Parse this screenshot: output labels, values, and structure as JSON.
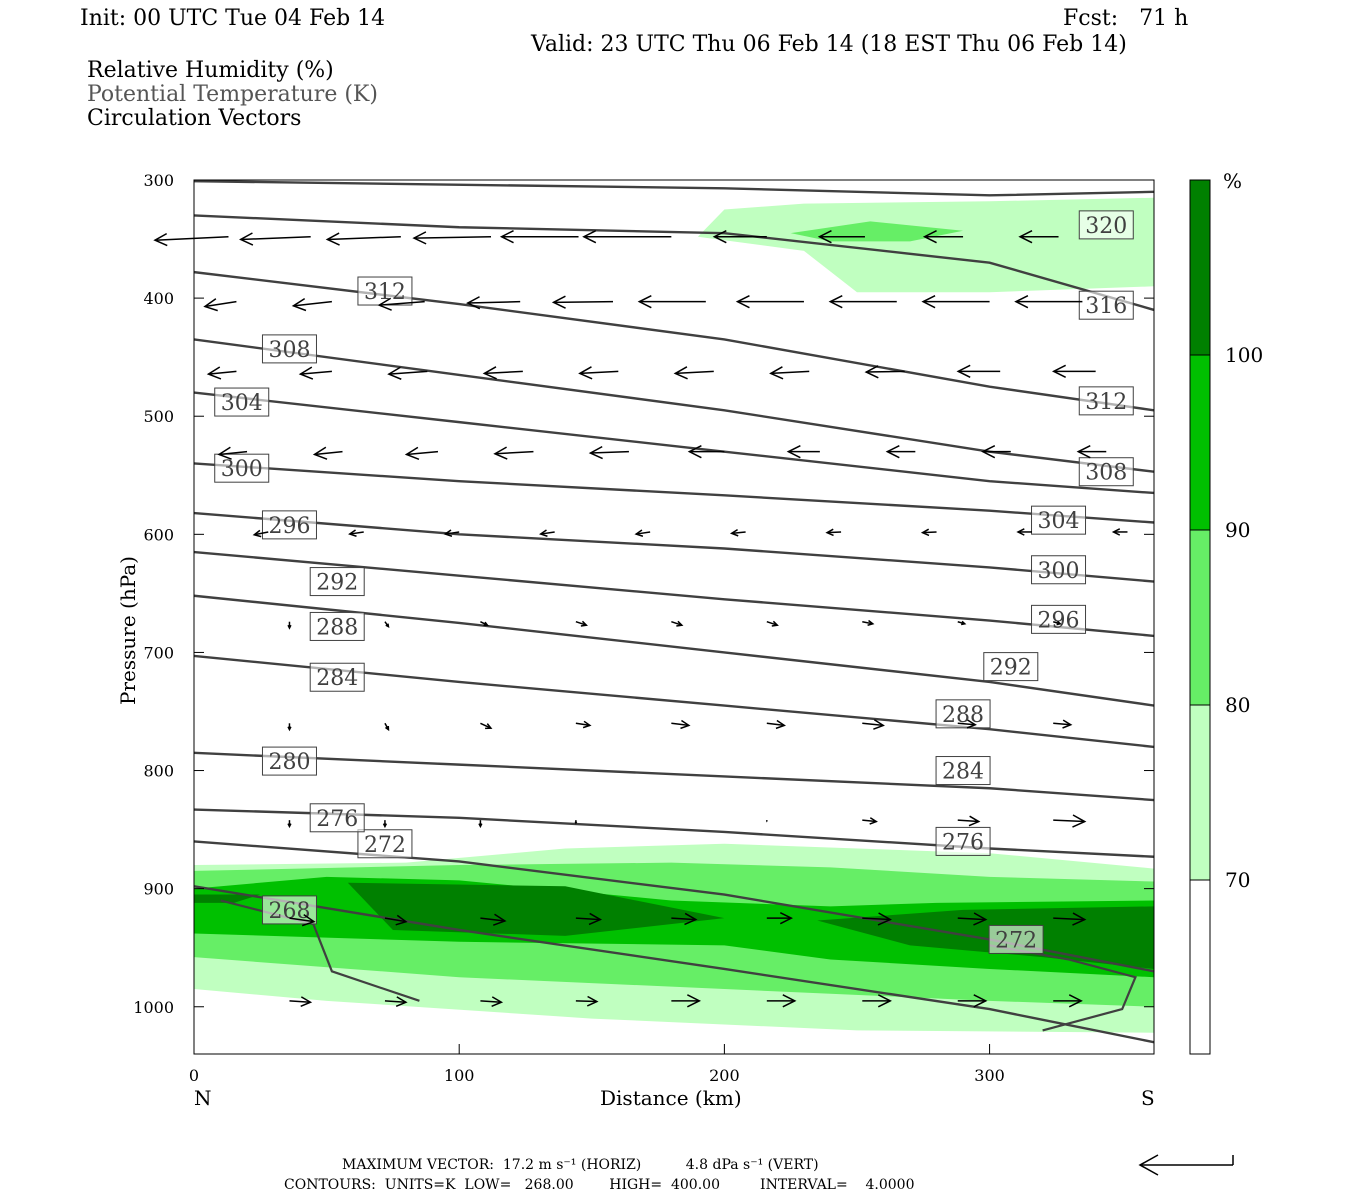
{
  "header": {
    "init": "Init: 00 UTC Tue 04 Feb 14",
    "fcst": "Fcst:   71 h",
    "valid": "Valid: 23 UTC Thu 06 Feb 14 (18 EST Thu 06 Feb 14)",
    "field1": "Relative Humidity (%)",
    "field2": "Potential Temperature (K)",
    "field3": "Circulation Vectors"
  },
  "footer": {
    "max_vector": "MAXIMUM VECTOR:  17.2 m s⁻¹ (HORIZ)          4.8 dPa s⁻¹ (VERT)",
    "contours": "CONTOURS:  UNITS=K  LOW=   268.00        HIGH=  400.00         INTERVAL=    4.0000"
  },
  "colors": {
    "rh70": "#c0ffc0",
    "rh80": "#66ee66",
    "rh90": "#00c000",
    "rh100": "#008000",
    "theta_line": "#404040"
  },
  "chart_data": {
    "type": "cross-section",
    "xlabel": "Distance (km)",
    "ylabel": "Pressure (hPa)",
    "xlim": [
      0,
      362
    ],
    "ylim": [
      1040,
      300
    ],
    "x_ticks": [
      0,
      100,
      200,
      300
    ],
    "y_ticks": [
      300,
      400,
      500,
      600,
      700,
      800,
      900,
      1000
    ],
    "left_end_label": "N",
    "right_end_label": "S",
    "colorbar": {
      "unit": "%",
      "levels": [
        70,
        80,
        90,
        100
      ]
    },
    "theta_contours": [
      {
        "value": 268,
        "points": [
          [
            0,
            898
          ],
          [
            100,
            935
          ],
          [
            200,
            968
          ],
          [
            300,
            1002
          ],
          [
            362,
            1030
          ]
        ],
        "labels": [
          [
            36,
            918
          ]
        ]
      },
      {
        "value": 272,
        "points": [
          [
            0,
            860
          ],
          [
            100,
            877
          ],
          [
            200,
            905
          ],
          [
            300,
            943
          ],
          [
            362,
            970
          ]
        ],
        "labels": [
          [
            72,
            862
          ],
          [
            310,
            943
          ]
        ]
      },
      {
        "value": 276,
        "points": [
          [
            0,
            833
          ],
          [
            100,
            840
          ],
          [
            200,
            852
          ],
          [
            300,
            866
          ],
          [
            362,
            873
          ]
        ],
        "labels": [
          [
            54,
            840
          ],
          [
            290,
            860
          ]
        ]
      },
      {
        "value": 280,
        "points": [
          [
            0,
            785
          ],
          [
            100,
            795
          ],
          [
            200,
            805
          ],
          [
            300,
            815
          ],
          [
            362,
            825
          ]
        ],
        "labels": [
          [
            36,
            792
          ]
        ]
      },
      {
        "value": 284,
        "points": [
          [
            0,
            703
          ],
          [
            100,
            725
          ],
          [
            200,
            745
          ],
          [
            300,
            765
          ],
          [
            362,
            780
          ]
        ],
        "labels": [
          [
            54,
            721
          ],
          [
            290,
            800
          ]
        ]
      },
      {
        "value": 288,
        "points": [
          [
            0,
            652
          ],
          [
            100,
            675
          ],
          [
            200,
            700
          ],
          [
            300,
            725
          ],
          [
            362,
            745
          ]
        ],
        "labels": [
          [
            54,
            678
          ],
          [
            290,
            752
          ]
        ]
      },
      {
        "value": 292,
        "points": [
          [
            0,
            615
          ],
          [
            100,
            635
          ],
          [
            200,
            655
          ],
          [
            300,
            673
          ],
          [
            362,
            686
          ]
        ],
        "labels": [
          [
            54,
            640
          ],
          [
            308,
            712
          ]
        ]
      },
      {
        "value": 296,
        "points": [
          [
            0,
            582
          ],
          [
            100,
            600
          ],
          [
            200,
            612
          ],
          [
            300,
            628
          ],
          [
            362,
            640
          ]
        ],
        "labels": [
          [
            36,
            592
          ],
          [
            326,
            672
          ]
        ]
      },
      {
        "value": 300,
        "points": [
          [
            0,
            540
          ],
          [
            100,
            555
          ],
          [
            200,
            567
          ],
          [
            300,
            580
          ],
          [
            362,
            590
          ]
        ],
        "labels": [
          [
            18,
            544
          ],
          [
            326,
            630
          ]
        ]
      },
      {
        "value": 304,
        "points": [
          [
            0,
            480
          ],
          [
            100,
            505
          ],
          [
            200,
            530
          ],
          [
            300,
            555
          ],
          [
            362,
            565
          ]
        ],
        "labels": [
          [
            18,
            488
          ],
          [
            326,
            588
          ]
        ]
      },
      {
        "value": 308,
        "points": [
          [
            0,
            435
          ],
          [
            100,
            465
          ],
          [
            200,
            495
          ],
          [
            300,
            530
          ],
          [
            362,
            547
          ]
        ],
        "labels": [
          [
            36,
            443
          ],
          [
            344,
            547
          ]
        ]
      },
      {
        "value": 312,
        "points": [
          [
            0,
            378
          ],
          [
            100,
            405
          ],
          [
            200,
            435
          ],
          [
            300,
            475
          ],
          [
            362,
            495
          ]
        ],
        "labels": [
          [
            72,
            394
          ],
          [
            344,
            487
          ]
        ]
      },
      {
        "value": 316,
        "points": [
          [
            0,
            330
          ],
          [
            100,
            340
          ],
          [
            200,
            345
          ],
          [
            300,
            370
          ],
          [
            362,
            410
          ]
        ],
        "labels": [
          [
            344,
            406
          ]
        ]
      },
      {
        "value": 320,
        "points": [
          [
            0,
            301
          ],
          [
            200,
            307
          ],
          [
            300,
            313
          ],
          [
            362,
            310
          ]
        ],
        "labels": [
          [
            344,
            338
          ]
        ]
      }
    ],
    "rh_regions": [
      {
        "level": 70,
        "points": [
          [
            0,
            880
          ],
          [
            80,
            878
          ],
          [
            140,
            866
          ],
          [
            200,
            862
          ],
          [
            300,
            870
          ],
          [
            362,
            883
          ],
          [
            362,
            1022
          ],
          [
            250,
            1020
          ],
          [
            150,
            1010
          ],
          [
            50,
            995
          ],
          [
            0,
            985
          ]
        ]
      },
      {
        "level": 70,
        "points": [
          [
            190,
            348
          ],
          [
            200,
            325
          ],
          [
            230,
            320
          ],
          [
            300,
            318
          ],
          [
            362,
            315
          ],
          [
            362,
            390
          ],
          [
            300,
            395
          ],
          [
            250,
            395
          ],
          [
            230,
            360
          ]
        ]
      },
      {
        "level": 80,
        "points": [
          [
            0,
            885
          ],
          [
            100,
            880
          ],
          [
            180,
            878
          ],
          [
            240,
            882
          ],
          [
            300,
            890
          ],
          [
            362,
            894
          ],
          [
            362,
            1000
          ],
          [
            300,
            995
          ],
          [
            200,
            985
          ],
          [
            100,
            975
          ],
          [
            0,
            958
          ]
        ]
      },
      {
        "level": 80,
        "points": [
          [
            225,
            345
          ],
          [
            255,
            335
          ],
          [
            290,
            343
          ],
          [
            270,
            352
          ],
          [
            240,
            352
          ]
        ]
      },
      {
        "level": 90,
        "points": [
          [
            0,
            900
          ],
          [
            50,
            890
          ],
          [
            100,
            893
          ],
          [
            180,
            910
          ],
          [
            240,
            915
          ],
          [
            280,
            912
          ],
          [
            362,
            910
          ],
          [
            362,
            975
          ],
          [
            300,
            968
          ],
          [
            240,
            960
          ],
          [
            200,
            948
          ],
          [
            100,
            945
          ],
          [
            0,
            938
          ]
        ]
      },
      {
        "level": 100,
        "points": [
          [
            58,
            895
          ],
          [
            140,
            898
          ],
          [
            200,
            925
          ],
          [
            140,
            940
          ],
          [
            75,
            935
          ]
        ]
      },
      {
        "level": 100,
        "points": [
          [
            0,
            905
          ],
          [
            25,
            905
          ],
          [
            15,
            912
          ],
          [
            0,
            912
          ]
        ]
      },
      {
        "level": 100,
        "points": [
          [
            235,
            927
          ],
          [
            290,
            918
          ],
          [
            362,
            915
          ],
          [
            362,
            968
          ],
          [
            320,
            958
          ],
          [
            270,
            948
          ]
        ]
      }
    ],
    "underground_lines": [
      {
        "points": [
          [
            10,
            910
          ],
          [
            45,
            930
          ],
          [
            52,
            970
          ],
          [
            85,
            995
          ]
        ]
      },
      {
        "points": [
          [
            320,
            1020
          ],
          [
            350,
            1002
          ],
          [
            355,
            975
          ],
          [
            330,
            960
          ],
          [
            300,
            948
          ]
        ]
      }
    ],
    "wind_vectors": [
      {
        "p": 348,
        "x": [
          13,
          44,
          78,
          112,
          145,
          180,
          216,
          253,
          290,
          326
        ],
        "dx": [
          -1.05,
          -1.0,
          -1.05,
          -1.1,
          -1.1,
          -1.25,
          -0.75,
          -0.65,
          -0.55,
          -0.55
        ],
        "dy": [
          0.05,
          0.04,
          0.04,
          0.02,
          0.0,
          0.0,
          0.0,
          0.0,
          0.0,
          0.0
        ]
      },
      {
        "p": 403,
        "x": [
          16,
          52,
          87,
          123,
          158,
          193,
          230,
          265,
          300,
          335
        ],
        "dx": [
          -0.45,
          -0.55,
          -0.65,
          -0.75,
          -0.85,
          -0.95,
          -0.95,
          -0.95,
          -0.95,
          -0.95
        ],
        "dy": [
          0.07,
          0.06,
          0.05,
          0.02,
          0.01,
          0.0,
          0.0,
          0.0,
          0.0,
          0.0
        ]
      },
      {
        "p": 462,
        "x": [
          16,
          52,
          88,
          124,
          160,
          196,
          232,
          268,
          304,
          340
        ],
        "dx": [
          -0.4,
          -0.45,
          -0.55,
          -0.55,
          -0.55,
          -0.55,
          -0.55,
          -0.55,
          -0.6,
          -0.6
        ],
        "dy": [
          0.04,
          0.04,
          0.04,
          0.03,
          0.03,
          0.03,
          0.03,
          0.01,
          0.0,
          0.0
        ]
      },
      {
        "p": 530,
        "x": [
          20,
          56,
          92,
          128,
          164,
          200,
          236,
          272,
          308,
          344
        ],
        "dx": [
          -0.4,
          -0.4,
          -0.45,
          -0.55,
          -0.55,
          -0.5,
          -0.45,
          -0.4,
          -0.4,
          -0.4
        ],
        "dy": [
          0.04,
          0.04,
          0.04,
          0.03,
          0.02,
          0.0,
          0.0,
          0.0,
          0.0,
          0.0
        ]
      },
      {
        "p": 598,
        "x": [
          28,
          64,
          100,
          136,
          172,
          208,
          244,
          280,
          316,
          352
        ],
        "dx": [
          -0.2,
          -0.2,
          -0.2,
          -0.2,
          -0.2,
          -0.2,
          -0.2,
          -0.2,
          -0.2,
          -0.2
        ],
        "dy": [
          0.04,
          0.03,
          0.03,
          0.03,
          0.03,
          0.02,
          0.01,
          0.01,
          0.0,
          0.0
        ]
      },
      {
        "p": 674,
        "x": [
          36,
          72,
          108,
          144,
          180,
          216,
          252,
          288,
          324
        ],
        "dx": [
          0.0,
          0.05,
          0.1,
          0.15,
          0.15,
          0.15,
          0.15,
          0.1,
          0.1
        ],
        "dy": [
          0.09,
          0.07,
          0.05,
          0.05,
          0.05,
          0.05,
          0.03,
          0.03,
          0.03
        ]
      },
      {
        "p": 760,
        "x": [
          36,
          72,
          108,
          144,
          180,
          216,
          252,
          288,
          324
        ],
        "dx": [
          0.0,
          0.05,
          0.15,
          0.2,
          0.25,
          0.25,
          0.3,
          0.25,
          0.25
        ],
        "dy": [
          0.09,
          0.09,
          0.07,
          0.03,
          0.03,
          0.03,
          0.03,
          0.02,
          0.02
        ]
      },
      {
        "p": 842,
        "x": [
          36,
          72,
          108,
          144,
          180,
          216,
          252,
          288,
          324
        ],
        "dx": [
          0.0,
          0.0,
          0.0,
          0.0,
          0.0,
          0.0,
          0.2,
          0.3,
          0.45
        ],
        "dy": [
          0.09,
          0.09,
          0.09,
          0.04,
          0.0,
          0.01,
          0.02,
          0.02,
          0.02
        ]
      },
      {
        "p": 925,
        "x": [
          36,
          72,
          108,
          144,
          180,
          216,
          252,
          288,
          324
        ],
        "dx": [
          0.35,
          0.3,
          0.35,
          0.35,
          0.35,
          0.35,
          0.4,
          0.4,
          0.45
        ],
        "dy": [
          0.05,
          0.05,
          0.04,
          0.02,
          0.02,
          0.0,
          0.02,
          0.02,
          0.02
        ]
      },
      {
        "p": 995,
        "x": [
          36,
          72,
          108,
          144,
          180,
          216,
          252,
          288,
          324
        ],
        "dx": [
          0.3,
          0.3,
          0.3,
          0.3,
          0.4,
          0.4,
          0.4,
          0.4,
          0.4
        ],
        "dy": [
          0.02,
          0.02,
          0.02,
          0.01,
          0.0,
          0.0,
          0.0,
          0.0,
          0.0
        ]
      }
    ]
  }
}
